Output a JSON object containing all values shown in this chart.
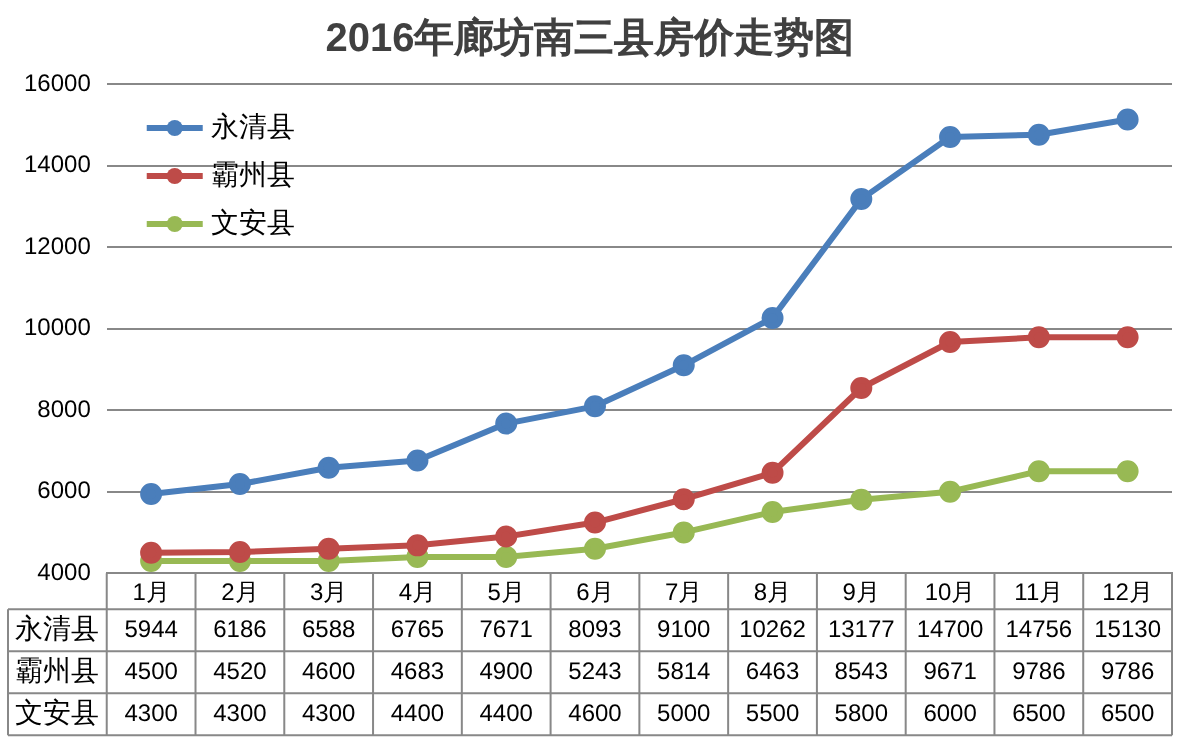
{
  "chart_data": {
    "type": "line",
    "title": "2016年廊坊南三县房价走势图",
    "categories": [
      "1月",
      "2月",
      "3月",
      "4月",
      "5月",
      "6月",
      "7月",
      "8月",
      "9月",
      "10月",
      "11月",
      "12月"
    ],
    "series": [
      {
        "name": "永清县",
        "color": "#4a7ebb",
        "values": [
          5944,
          6186,
          6588,
          6765,
          7671,
          8093,
          9100,
          10262,
          13177,
          14700,
          14756,
          15130
        ]
      },
      {
        "name": "霸州县",
        "color": "#be4b48",
        "values": [
          4500,
          4520,
          4600,
          4683,
          4900,
          5243,
          5814,
          6463,
          8543,
          9671,
          9786,
          9786
        ]
      },
      {
        "name": "文安县",
        "color": "#98b954",
        "values": [
          4300,
          4300,
          4300,
          4400,
          4400,
          4600,
          5000,
          5500,
          5800,
          6000,
          6500,
          6500
        ]
      }
    ],
    "ylim": [
      4000,
      16000
    ],
    "yticks": [
      4000,
      6000,
      8000,
      10000,
      12000,
      14000,
      16000
    ],
    "grid": "y",
    "legend": "top left",
    "marker": "circle",
    "line_style": "solid",
    "data_labels": true
  }
}
